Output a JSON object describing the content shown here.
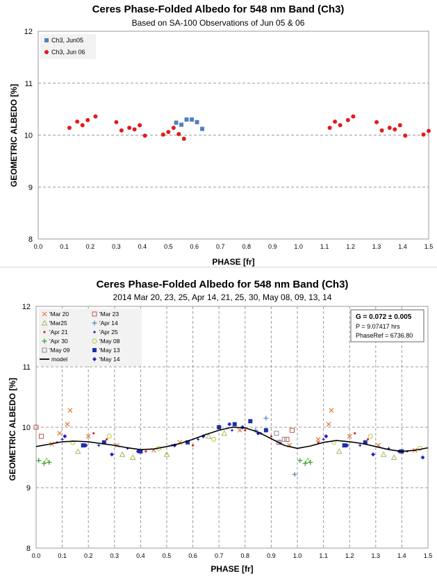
{
  "chart_data": [
    {
      "type": "scatter",
      "title": "Ceres Phase-Folded Albedo for 548 nm Band (Ch3)",
      "subtitle": "Based on SA-100 Observations of Jun 05  & 06",
      "xlabel": "PHASE [fr]",
      "ylabel": "GEOMETRIC ALBEDO [%]",
      "xlim": [
        0.0,
        1.5
      ],
      "ylim": [
        8,
        12
      ],
      "xticks": [
        "0.0",
        "0.1",
        "0.2",
        "0.3",
        "0.4",
        "0.5",
        "0.6",
        "0.7",
        "0.8",
        "0.9",
        "1.0",
        "1.1",
        "1.2",
        "1.3",
        "1.4",
        "1.5"
      ],
      "yticks": [
        "8",
        "9",
        "10",
        "11",
        "12"
      ],
      "grid": "horizontal dashed",
      "legend_position": "top-left",
      "series": [
        {
          "name": "Ch3, Jun05",
          "color": "#4f81bd",
          "marker": "square",
          "x": [
            0.53,
            0.55,
            0.57,
            0.59,
            0.61,
            0.63
          ],
          "y": [
            10.24,
            10.2,
            10.3,
            10.3,
            10.25,
            10.12
          ]
        },
        {
          "name": "Ch3, Jun 06",
          "color": "#e41a1c",
          "marker": "circle",
          "x": [
            0.12,
            0.15,
            0.17,
            0.19,
            0.22,
            0.3,
            0.32,
            0.35,
            0.37,
            0.39,
            0.41,
            0.48,
            0.5,
            0.52,
            0.54,
            0.56,
            1.12,
            1.14,
            1.16,
            1.19,
            1.21,
            1.3,
            1.32,
            1.35,
            1.37,
            1.39,
            1.41,
            1.48,
            1.5
          ],
          "y": [
            10.14,
            10.26,
            10.19,
            10.29,
            10.36,
            10.25,
            10.09,
            10.14,
            10.11,
            10.19,
            9.99,
            10.01,
            10.06,
            10.14,
            10.02,
            9.93,
            10.14,
            10.26,
            10.19,
            10.29,
            10.36,
            10.25,
            10.09,
            10.14,
            10.11,
            10.19,
            9.99,
            10.01,
            10.08
          ]
        }
      ]
    },
    {
      "type": "scatter",
      "title": "Ceres Phase-Folded Albedo for 548 nm Band (Ch3)",
      "subtitle": "2014 Mar 20, 23, 25, Apr 14, 21, 25, 30, May 08, 09, 13, 14",
      "xlabel": "PHASE [fr]",
      "ylabel": "GEOMETRIC ALBEDO [%]",
      "xlim": [
        0.0,
        1.5
      ],
      "ylim": [
        8,
        12
      ],
      "xticks": [
        "0.0",
        "0.1",
        "0.2",
        "0.3",
        "0.4",
        "0.5",
        "0.6",
        "0.7",
        "0.8",
        "0.9",
        "1.0",
        "1.1",
        "1.2",
        "1.3",
        "1.4",
        "1.5"
      ],
      "yticks": [
        "8",
        "9",
        "10",
        "11",
        "12"
      ],
      "grid": "dashed",
      "legend_position": "top-left",
      "fit_box": {
        "line1": "G = 0.072 ± 0.005",
        "line2": "P = 9.07417 hrs",
        "line3": "PhaseRef = 6736.80"
      },
      "legend": [
        {
          "name": "'Mar 20",
          "marker": "x",
          "color": "#e07b39"
        },
        {
          "name": "'Mar 23",
          "marker": "square-open",
          "color": "#c0504d"
        },
        {
          "name": "'Mar25",
          "marker": "triangle-open",
          "color": "#9bbb59"
        },
        {
          "name": "'Apr 14",
          "marker": "plus",
          "color": "#4f81bd"
        },
        {
          "name": "'Apr 21",
          "marker": "dot",
          "color": "#d62728"
        },
        {
          "name": "'Apr 25",
          "marker": "plus-small",
          "color": "#1f1fa0"
        },
        {
          "name": "'Apr 30",
          "marker": "plus",
          "color": "#2ca02c"
        },
        {
          "name": "'May 08",
          "marker": "circle-open",
          "color": "#b5c934"
        },
        {
          "name": "'May 09",
          "marker": "square-open",
          "color": "#8c8c8c"
        },
        {
          "name": "'May 13",
          "marker": "square",
          "color": "#1f2fa0"
        },
        {
          "name": "model",
          "marker": "line",
          "color": "#000000"
        },
        {
          "name": "'May 14",
          "marker": "diamond",
          "color": "#2222cc"
        }
      ],
      "model": {
        "name": "model",
        "x": [
          0.0,
          0.05,
          0.1,
          0.15,
          0.2,
          0.25,
          0.3,
          0.35,
          0.4,
          0.45,
          0.5,
          0.55,
          0.6,
          0.65,
          0.7,
          0.75,
          0.8,
          0.85,
          0.9,
          0.95,
          1.0,
          1.05,
          1.1,
          1.15,
          1.2,
          1.25,
          1.3,
          1.35,
          1.4,
          1.45,
          1.5
        ],
        "y": [
          9.68,
          9.72,
          9.76,
          9.77,
          9.76,
          9.73,
          9.7,
          9.66,
          9.63,
          9.64,
          9.68,
          9.73,
          9.8,
          9.88,
          9.95,
          10.0,
          9.99,
          9.92,
          9.81,
          9.7,
          9.65,
          9.69,
          9.75,
          9.78,
          9.76,
          9.73,
          9.68,
          9.63,
          9.6,
          9.62,
          9.66
        ]
      },
      "scatter_description_note": "",
      "series": [
        {
          "name": "'Mar 20",
          "x": [
            0.06,
            0.09,
            0.12,
            0.13,
            0.2,
            0.31,
            0.45,
            0.55,
            0.78,
            0.97,
            1.08,
            1.12,
            1.13,
            1.2,
            1.31,
            1.45
          ],
          "y": [
            9.72,
            9.9,
            10.05,
            10.28,
            9.85,
            9.7,
            9.62,
            9.75,
            9.95,
            9.7,
            9.8,
            10.05,
            10.28,
            9.85,
            9.7,
            9.62
          ]
        },
        {
          "name": "'Mar 23",
          "x": [
            0.0,
            0.02,
            0.93,
            0.96,
            0.98
          ],
          "y": [
            10.0,
            9.85,
            9.75,
            9.8,
            9.95
          ]
        },
        {
          "name": "'Mar25",
          "x": [
            0.04,
            0.16,
            0.33,
            0.37,
            0.5,
            0.66,
            0.72,
            1.04,
            1.16,
            1.33,
            1.37
          ],
          "y": [
            9.45,
            9.6,
            9.55,
            9.5,
            9.55,
            9.85,
            9.9,
            9.45,
            9.6,
            9.55,
            9.5
          ]
        },
        {
          "name": "'Apr 14",
          "x": [
            0.84,
            0.88,
            0.93,
            0.99
          ],
          "y": [
            9.95,
            10.15,
            9.75,
            9.22
          ]
        },
        {
          "name": "'Apr 21",
          "x": [
            0.08,
            0.22,
            0.27,
            0.42,
            0.6,
            0.8,
            0.9,
            1.08,
            1.22,
            1.27,
            1.42
          ],
          "y": [
            9.75,
            9.9,
            9.8,
            9.6,
            9.7,
            9.95,
            9.85,
            9.75,
            9.9,
            9.8,
            9.6
          ]
        },
        {
          "name": "'Apr 25",
          "x": [
            0.1,
            0.24,
            0.35,
            0.52,
            0.62,
            0.75,
            0.86,
            1.1,
            1.24,
            1.35
          ],
          "y": [
            9.8,
            9.7,
            9.65,
            9.7,
            9.8,
            9.95,
            9.9,
            9.8,
            9.7,
            9.65
          ]
        },
        {
          "name": "'Apr 30",
          "x": [
            0.01,
            0.03,
            0.05,
            1.01,
            1.03,
            1.05
          ],
          "y": [
            9.45,
            9.4,
            9.42,
            9.45,
            9.4,
            9.42
          ]
        },
        {
          "name": "'May 08",
          "x": [
            0.14,
            0.28,
            0.47,
            0.68,
            1.14,
            1.28,
            1.47
          ],
          "y": [
            9.75,
            9.85,
            9.65,
            9.8,
            9.75,
            9.85,
            9.65
          ]
        },
        {
          "name": "'May 09",
          "x": [
            0.92,
            0.95
          ],
          "y": [
            9.9,
            9.8
          ]
        },
        {
          "name": "'May 13",
          "x": [
            0.18,
            0.26,
            0.4,
            0.58,
            0.7,
            0.76,
            0.82,
            0.88,
            1.18,
            1.26,
            1.4
          ],
          "y": [
            9.7,
            9.75,
            9.6,
            9.75,
            10.0,
            10.05,
            10.1,
            9.95,
            9.7,
            9.75,
            9.6
          ]
        },
        {
          "name": "'May 14",
          "x": [
            0.11,
            0.19,
            0.29,
            0.39,
            0.53,
            0.64,
            0.74,
            0.79,
            0.85,
            1.11,
            1.19,
            1.29,
            1.39,
            1.48
          ],
          "y": [
            9.85,
            9.7,
            9.55,
            9.6,
            9.7,
            9.85,
            10.05,
            10.0,
            9.9,
            9.85,
            9.7,
            9.55,
            9.6,
            9.5
          ]
        }
      ]
    }
  ]
}
